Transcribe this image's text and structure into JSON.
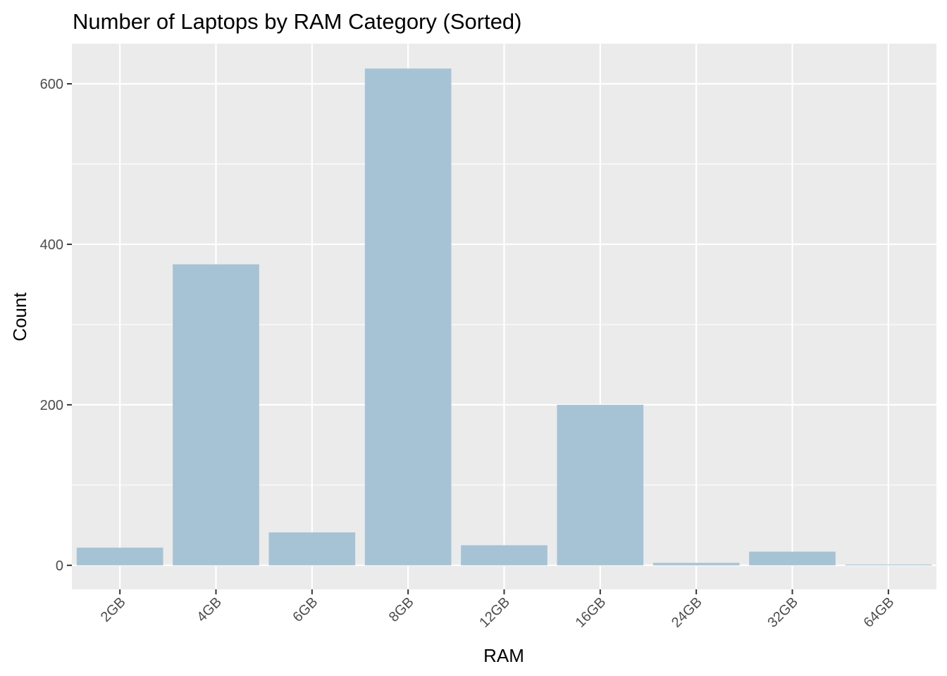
{
  "chart_data": {
    "type": "bar",
    "title": "Number of Laptops by RAM Category (Sorted)",
    "xlabel": "RAM",
    "ylabel": "Count",
    "categories": [
      "2GB",
      "4GB",
      "6GB",
      "8GB",
      "12GB",
      "16GB",
      "24GB",
      "32GB",
      "64GB"
    ],
    "values": [
      22,
      375,
      41,
      619,
      25,
      200,
      3,
      17,
      1
    ],
    "ylim": [
      -30,
      650
    ],
    "yticks": [
      0,
      200,
      400,
      600
    ],
    "y_minor_ticks": [
      100,
      300,
      500
    ],
    "grid": true,
    "legend": "none",
    "x_tick_rotation": 45,
    "colors": {
      "bar": "#a6c3d5",
      "panel_background": "#ebebeb",
      "grid": "#ffffff",
      "tick_text": "#4d4d4d",
      "tick_mark": "#333333"
    }
  }
}
